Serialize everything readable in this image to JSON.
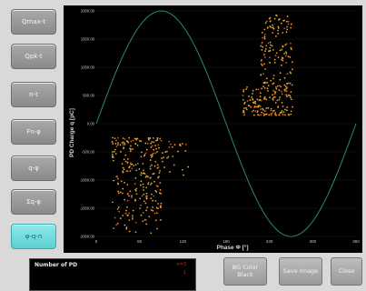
{
  "sidebar": {
    "buttons": [
      {
        "label": "Qmax-t"
      },
      {
        "label": "Qpk-t"
      },
      {
        "label": "n-t"
      },
      {
        "label": "Fn-φ"
      },
      {
        "label": "q-φ"
      },
      {
        "label": "Σq-φ"
      },
      {
        "label": "φ-q-n"
      }
    ],
    "active_index": 6
  },
  "count_panel": {
    "title": "Number of PD",
    "values": [
      "n=3",
      "1"
    ]
  },
  "buttons": {
    "bg_color": "BG Color\nBlack",
    "save": "Save Image",
    "close": "Close"
  },
  "colors": {
    "plot_bg": "#000000",
    "sine": "#2b8c64",
    "points": "#e7a12e",
    "points_alt": "#d8581c",
    "axis_text": "#cccccc",
    "active_btn": "#6edcde"
  },
  "chart_data": {
    "type": "scatter",
    "xlabel": "Phase Φ [°]",
    "ylabel": "PD Charge q [pC]",
    "xlim": [
      0,
      360
    ],
    "ylim": [
      -2000,
      2000
    ],
    "x_ticks": [
      "0",
      "60",
      "120",
      "180",
      "240",
      "300",
      "360"
    ],
    "y_ticks": [
      "2000.00",
      "1500.00",
      "1000.00",
      "500.00",
      "0.00",
      "-500.00",
      "-1000.00",
      "-1500.00",
      "-2000.00"
    ],
    "sine_amplitude": 2000,
    "clusters": [
      {
        "x_range": [
          22,
          90
        ],
        "y_range": [
          -1950,
          -250
        ],
        "count": 260
      },
      {
        "x_range": [
          90,
          130
        ],
        "y_range": [
          -950,
          -300
        ],
        "count": 28
      },
      {
        "x_range": [
          202,
          230
        ],
        "y_range": [
          150,
          650
        ],
        "count": 60
      },
      {
        "x_range": [
          228,
          272
        ],
        "y_range": [
          150,
          1950
        ],
        "count": 220
      }
    ]
  }
}
